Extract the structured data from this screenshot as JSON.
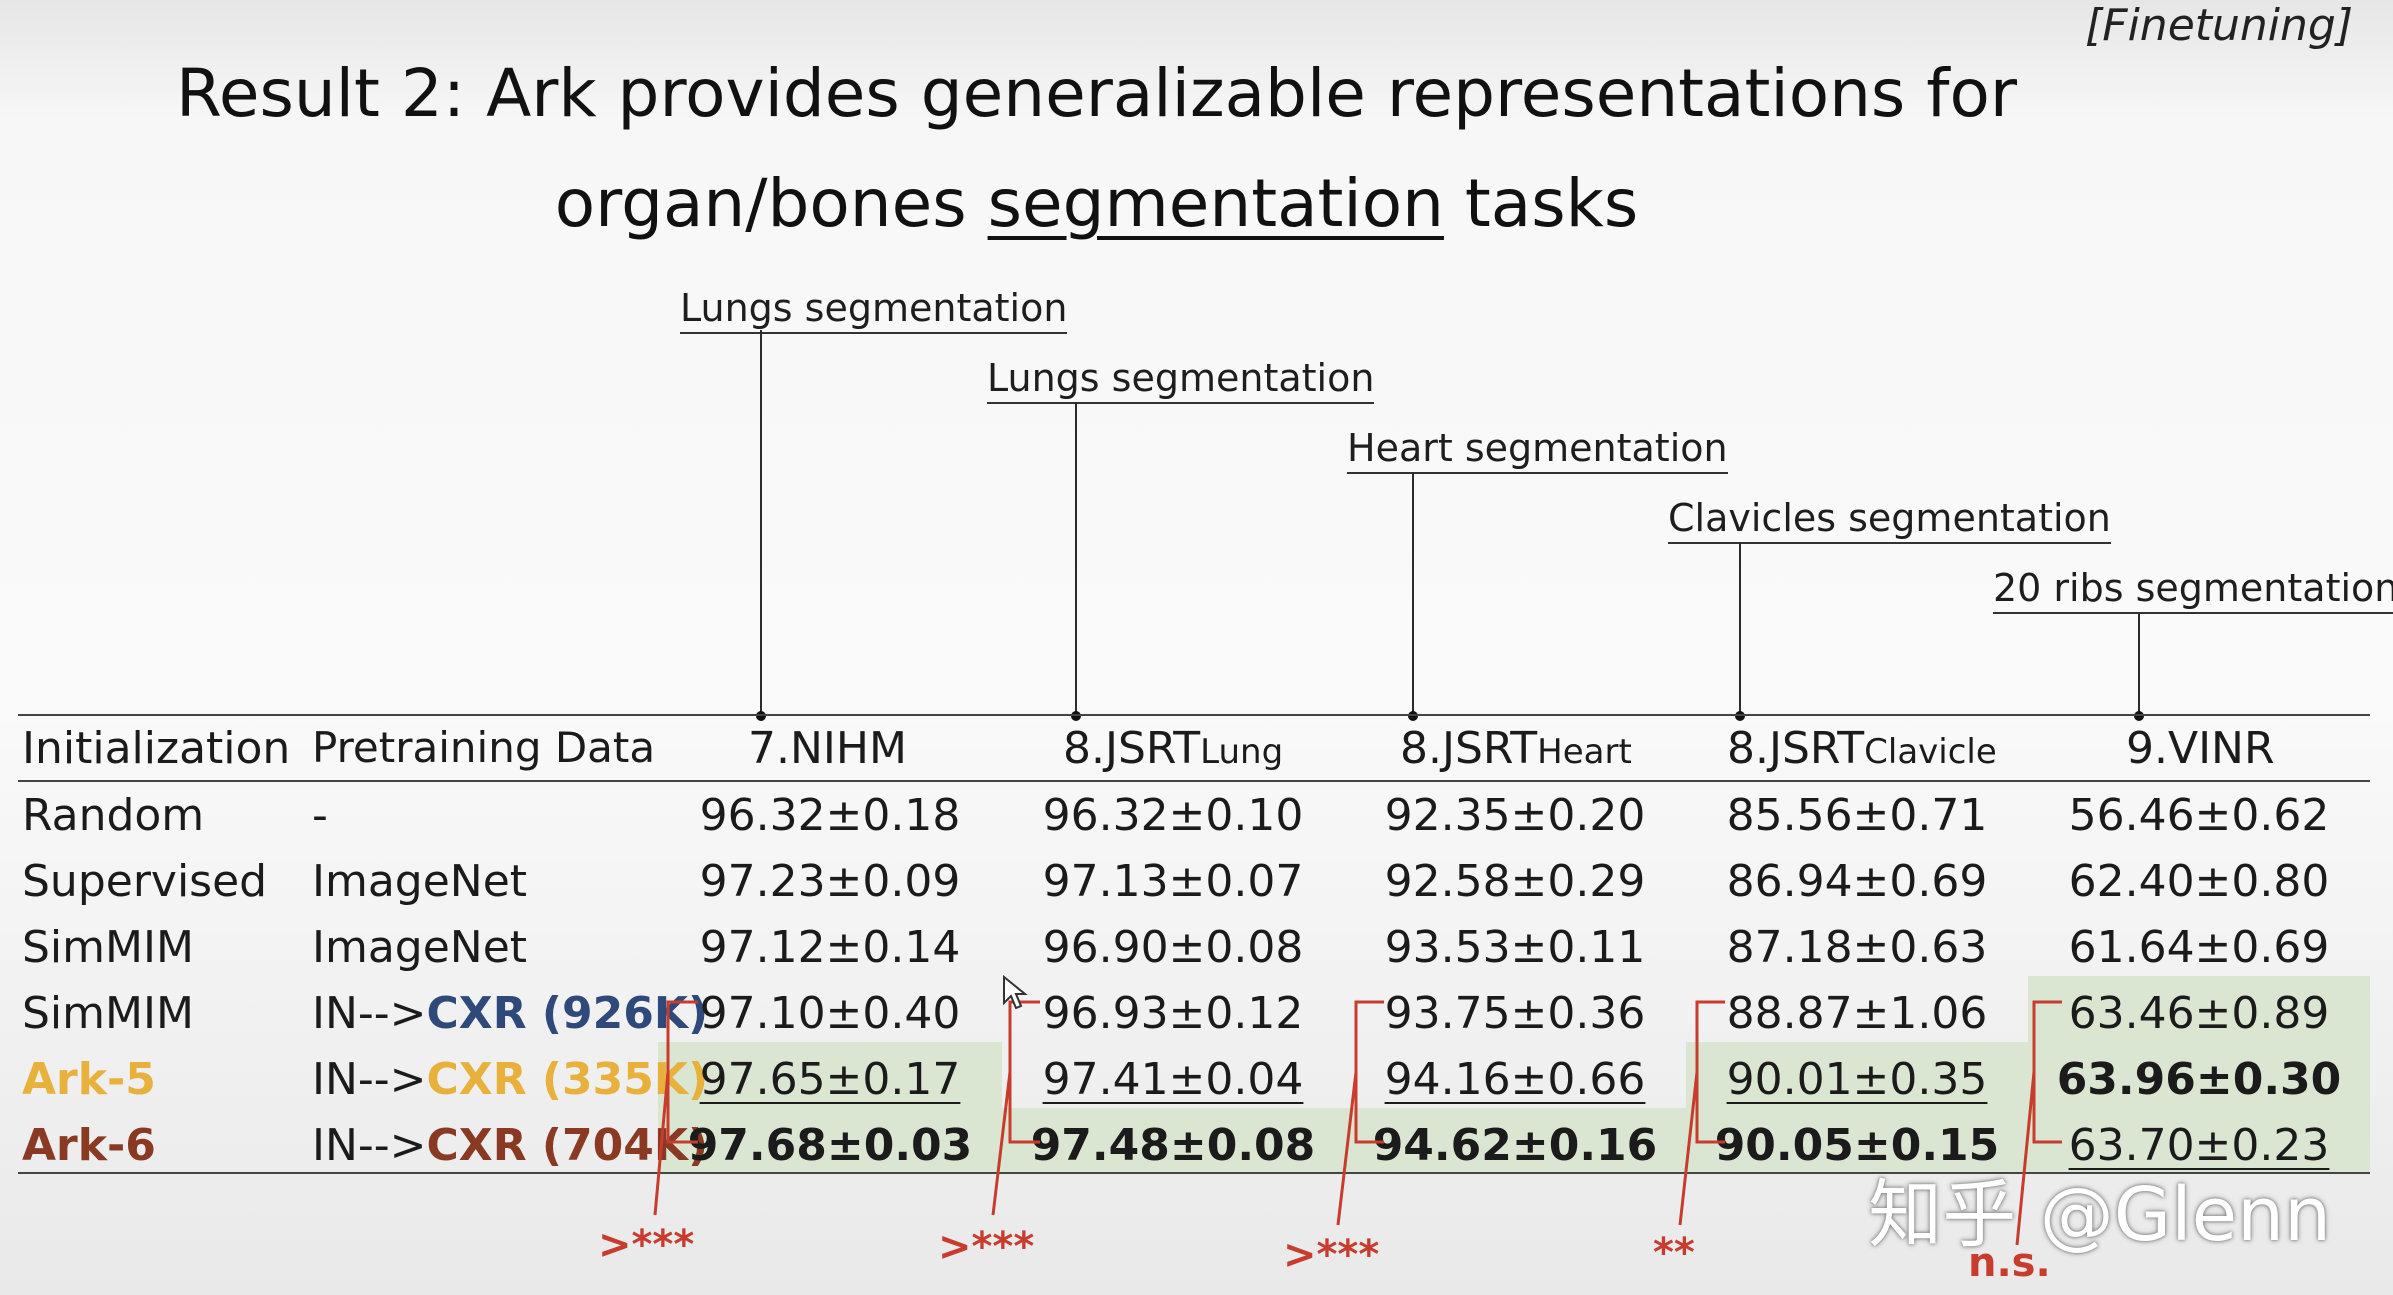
{
  "tag": "[Finetuning]",
  "title": {
    "line1": "Result 2: Ark provides generalizable representations for",
    "line2_pre": "organ/bones ",
    "line2_ul": "segmentation",
    "line2_post": " tasks"
  },
  "annotations": [
    "Lungs segmentation",
    "Lungs segmentation",
    "Heart segmentation",
    "Clavicles segmentation",
    "20 ribs segmentation"
  ],
  "headers": {
    "init": "Initialization",
    "pre": "Pretraining Data",
    "c1": "7.NIHM",
    "c2": "8.JSRT",
    "c2s": "Lung",
    "c3": "8.JSRT",
    "c3s": "Heart",
    "c4": "8.JSRT",
    "c4s": "Clavicle",
    "c5": "9.VINR"
  },
  "rows": [
    {
      "init": "Random",
      "pre": "-",
      "v": [
        "96.32±0.18",
        "96.32±0.10",
        "92.35±0.20",
        "85.56±0.71",
        "56.46±0.62"
      ]
    },
    {
      "init": "Supervised",
      "pre": "ImageNet",
      "v": [
        "97.23±0.09",
        "97.13±0.07",
        "92.58±0.29",
        "86.94±0.69",
        "62.40±0.80"
      ]
    },
    {
      "init": "SimMIM",
      "pre": "ImageNet",
      "v": [
        "97.12±0.14",
        "96.90±0.08",
        "93.53±0.11",
        "87.18±0.63",
        "61.64±0.69"
      ]
    },
    {
      "init": "SimMIM",
      "pre_a": "IN-->",
      "pre_b": "CXR (926K)",
      "v": [
        "97.10±0.40",
        "96.93±0.12",
        "93.75±0.36",
        "88.87±1.06",
        "63.46±0.89"
      ]
    },
    {
      "init": "Ark-5",
      "pre_a": "IN-->",
      "pre_b": "CXR (335K)",
      "v": [
        "97.65±0.17",
        "97.41±0.04",
        "94.16±0.66",
        "90.01±0.35",
        "63.96±0.30"
      ]
    },
    {
      "init": "Ark-6",
      "pre_a": "IN-->",
      "pre_b": "CXR (704K)",
      "v": [
        "97.68±0.03",
        "97.48±0.08",
        "94.62±0.16",
        "90.05±0.15",
        "63.70±0.23"
      ]
    }
  ],
  "significance": [
    ">***",
    ">***",
    ">***",
    "**",
    "n.s."
  ],
  "watermark": "知乎 @Glenn",
  "colors": {
    "ark5": "#e8b13b",
    "ark6": "#8a3a22",
    "cxr926": "#2f4a7a",
    "sig": "#c73c2c",
    "highlight": "#d7e4cc"
  }
}
